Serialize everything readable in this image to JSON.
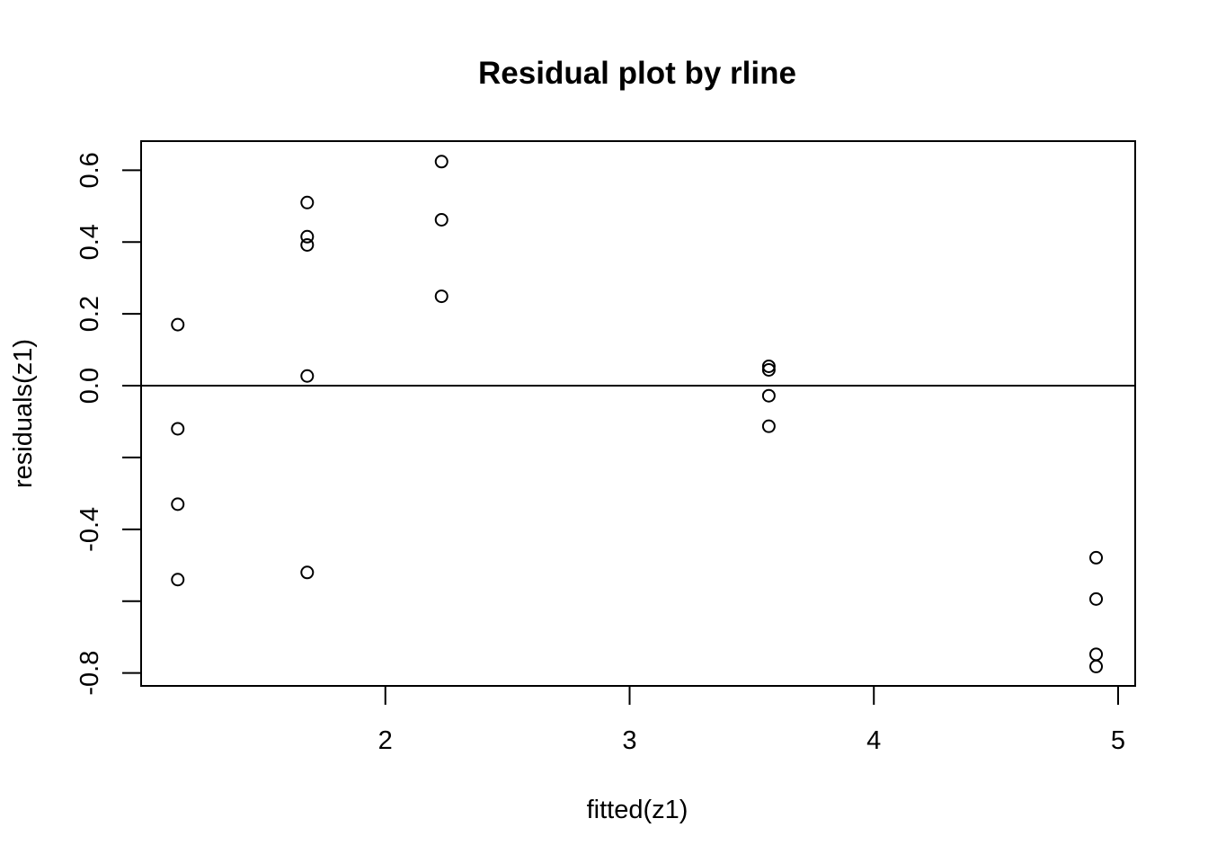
{
  "chart_data": {
    "type": "scatter",
    "title": "Residual plot by rline",
    "xlabel": "fitted(z1)",
    "ylabel": "residuals(z1)",
    "xlim": [
      1.0,
      5.07
    ],
    "ylim": [
      -0.836,
      0.681
    ],
    "x_ticks": [
      2,
      3,
      4,
      5
    ],
    "x_tick_labels": [
      "2",
      "3",
      "4",
      "5"
    ],
    "y_ticks": [
      -0.8,
      -0.6,
      -0.4,
      -0.2,
      0.0,
      0.2,
      0.4,
      0.6
    ],
    "y_tick_labels": [
      "-0.8",
      "",
      "-0.4",
      "",
      "0.0",
      "0.2",
      "0.4",
      "0.6"
    ],
    "reference_line": {
      "orientation": "horizontal",
      "y": 0.0
    },
    "grid": false,
    "marker": "open-circle",
    "colors": {
      "points": "#000000",
      "axes": "#000000",
      "background": "#ffffff"
    },
    "points": [
      {
        "x": 1.15,
        "y": 0.17
      },
      {
        "x": 1.15,
        "y": -0.12
      },
      {
        "x": 1.15,
        "y": -0.33
      },
      {
        "x": 1.15,
        "y": -0.54
      },
      {
        "x": 1.68,
        "y": 0.51
      },
      {
        "x": 1.68,
        "y": 0.415
      },
      {
        "x": 1.68,
        "y": 0.392
      },
      {
        "x": 1.68,
        "y": 0.027
      },
      {
        "x": 1.68,
        "y": -0.52
      },
      {
        "x": 2.23,
        "y": 0.624
      },
      {
        "x": 2.23,
        "y": 0.462
      },
      {
        "x": 2.23,
        "y": 0.249
      },
      {
        "x": 3.57,
        "y": 0.054
      },
      {
        "x": 3.57,
        "y": 0.044
      },
      {
        "x": 3.57,
        "y": -0.028
      },
      {
        "x": 3.57,
        "y": -0.113
      },
      {
        "x": 4.91,
        "y": -0.479
      },
      {
        "x": 4.91,
        "y": -0.594
      },
      {
        "x": 4.91,
        "y": -0.748
      },
      {
        "x": 4.91,
        "y": -0.782
      }
    ]
  }
}
